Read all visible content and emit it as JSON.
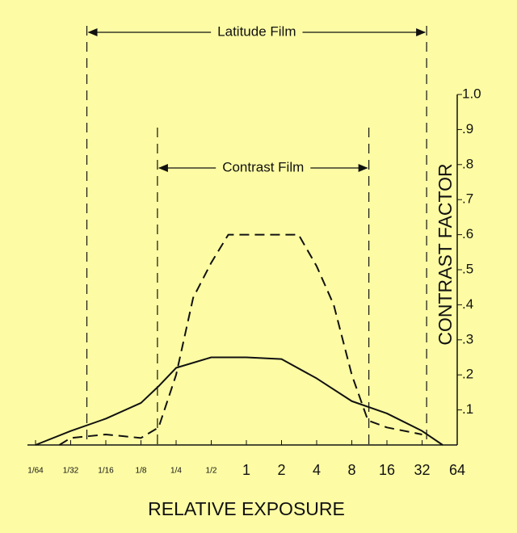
{
  "chart_data": {
    "type": "line",
    "x_label": "RELATIVE EXPOSURE",
    "y_label": "CONTRAST FACTOR",
    "xscale": "log2",
    "xlim": [
      0.015625,
      64
    ],
    "xticks": [
      {
        "value": 0.015625,
        "label": "1/64"
      },
      {
        "value": 0.03125,
        "label": "1/32"
      },
      {
        "value": 0.0625,
        "label": "1/16"
      },
      {
        "value": 0.125,
        "label": "1/8"
      },
      {
        "value": 0.25,
        "label": "1/4"
      },
      {
        "value": 0.5,
        "label": "1/2"
      },
      1,
      2,
      4,
      8,
      16,
      32,
      64
    ],
    "ylim": [
      0,
      1.0
    ],
    "yticks": [
      {
        "value": 0.1,
        "label": ".1"
      },
      {
        "value": 0.2,
        "label": ".2"
      },
      {
        "value": 0.3,
        "label": ".3"
      },
      {
        "value": 0.4,
        "label": ".4"
      },
      {
        "value": 0.5,
        "label": ".5"
      },
      {
        "value": 0.6,
        "label": ".6"
      },
      {
        "value": 0.7,
        "label": ".7"
      },
      {
        "value": 0.8,
        "label": ".8"
      },
      {
        "value": 0.9,
        "label": ".9"
      },
      {
        "value": 1.0,
        "label": "1.0"
      }
    ],
    "series": [
      {
        "name": "Latitude Film",
        "style": "solid",
        "color": "#111111",
        "range": [
          0.043,
          35
        ],
        "x": [
          0.015625,
          0.03125,
          0.0625,
          0.125,
          0.18,
          0.25,
          0.5,
          1,
          2,
          4,
          8,
          16,
          32,
          48
        ],
        "values": [
          0,
          0.04,
          0.075,
          0.12,
          0.17,
          0.22,
          0.25,
          0.25,
          0.245,
          0.19,
          0.125,
          0.09,
          0.04,
          0
        ]
      },
      {
        "name": "Contrast Film",
        "style": "dashed",
        "color": "#111111",
        "range": [
          0.173,
          11.2
        ],
        "x": [
          0.025,
          0.03125,
          0.0625,
          0.125,
          0.177,
          0.25,
          0.35,
          0.5,
          0.7,
          1,
          2,
          2.8,
          4,
          5.6,
          8,
          11,
          16,
          32
        ],
        "values": [
          0,
          0.02,
          0.03,
          0.02,
          0.05,
          0.2,
          0.42,
          0.52,
          0.6,
          0.6,
          0.6,
          0.6,
          0.51,
          0.4,
          0.2,
          0.07,
          0.05,
          0.03
        ]
      }
    ]
  }
}
